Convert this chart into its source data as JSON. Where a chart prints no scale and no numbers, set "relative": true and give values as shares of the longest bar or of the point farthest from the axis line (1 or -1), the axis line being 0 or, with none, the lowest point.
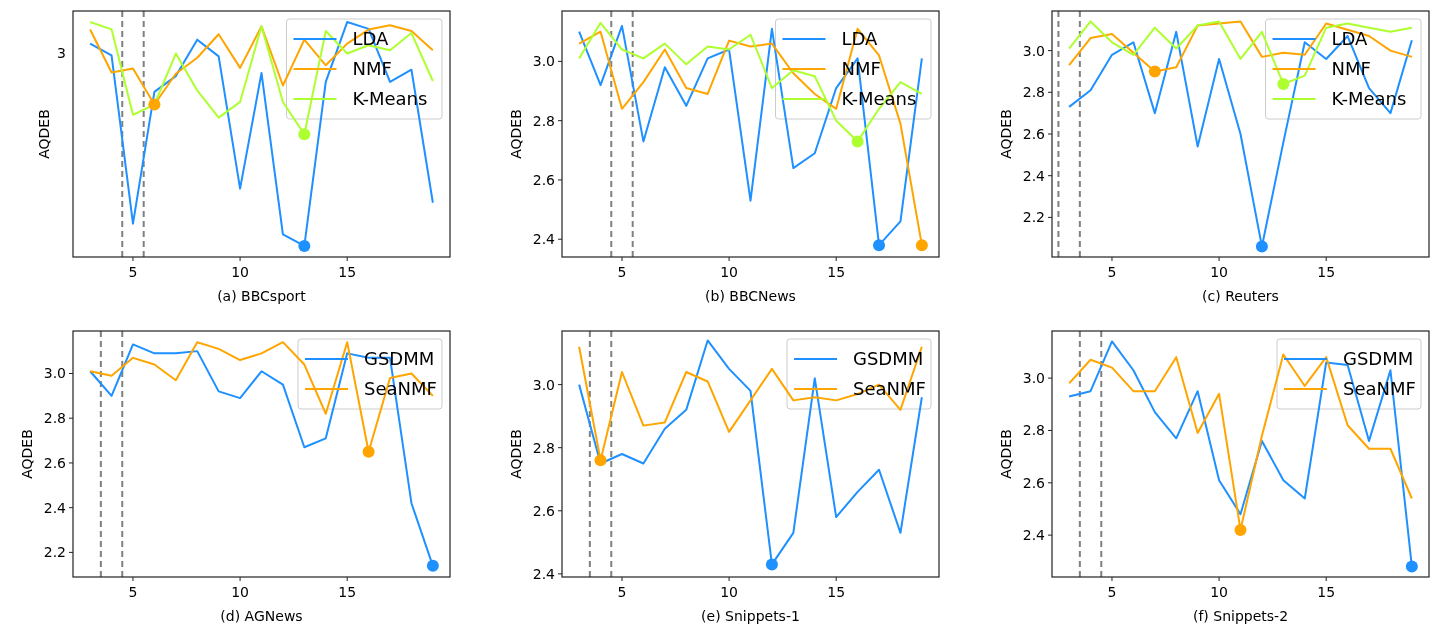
{
  "chart_data": [
    {
      "type": "line",
      "xlabel": "(a) BBCsport",
      "ylabel": "AQDEB",
      "relative": true,
      "annotations": [
        "3"
      ],
      "xlim": [
        2.2,
        19.8
      ],
      "xticks": [
        5,
        10,
        15
      ],
      "legend": "top right",
      "x": [
        3,
        4,
        5,
        6,
        7,
        8,
        9,
        10,
        11,
        12,
        13,
        14,
        15,
        16,
        17,
        18,
        19
      ],
      "ref_lines": [
        {
          "axis": "x",
          "value": 4.5,
          "color": "#808080",
          "line_style": "dashed"
        },
        {
          "axis": "x",
          "value": 5.5,
          "color": "#808080",
          "line_style": "dashed"
        }
      ],
      "series": [
        {
          "name": "LDA",
          "color": "#1e90ff",
          "values": [
            0.908,
            0.858,
            0.142,
            0.703,
            0.77,
            0.925,
            0.854,
            0.291,
            0.783,
            0.096,
            0.047,
            0.745,
            1,
            0.971,
            0.745,
            0.797,
            0.231
          ]
        },
        {
          "name": "NMF",
          "color": "#ffa500",
          "values": [
            0.968,
            0.785,
            0.802,
            0.649,
            0.78,
            0.848,
            0.948,
            0.805,
            0.982,
            0.73,
            0.925,
            0.816,
            0.908,
            0.968,
            0.986,
            0.962,
            0.88
          ]
        },
        {
          "name": "K-Means",
          "color": "#adff2f",
          "values": [
            1,
            0.969,
            0.605,
            0.649,
            0.866,
            0.709,
            0.593,
            0.66,
            0.982,
            0.66,
            0.522,
            0.962,
            0.866,
            0.901,
            0.88,
            0.953,
            0.749
          ]
        },
        {
          "type": "scatter",
          "marker": "circle",
          "color": "#1e90ff",
          "x": [
            13
          ],
          "values": [
            0.047
          ]
        },
        {
          "type": "scatter",
          "marker": "circle",
          "color": "#ffa500",
          "x": [
            6
          ],
          "values": [
            0.649
          ]
        },
        {
          "type": "scatter",
          "marker": "circle",
          "color": "#adff2f",
          "x": [
            13
          ],
          "values": [
            0.522
          ]
        }
      ]
    },
    {
      "type": "line",
      "xlabel": "(b) BBCNews",
      "ylabel": "AQDEB",
      "ylim": [
        2.34,
        3.17
      ],
      "yticks": [
        {
          "value": 2.4,
          "label": "2.4"
        },
        {
          "value": 2.6,
          "label": "2.6"
        },
        {
          "value": 2.8,
          "label": "2.8"
        },
        {
          "value": 3,
          "label": "3.0"
        }
      ],
      "xlim": [
        2.2,
        19.8
      ],
      "xticks": [
        5,
        10,
        15
      ],
      "legend": "top right",
      "x": [
        3,
        4,
        5,
        6,
        7,
        8,
        9,
        10,
        11,
        12,
        13,
        14,
        15,
        16,
        17,
        18,
        19
      ],
      "ref_lines": [
        {
          "axis": "x",
          "value": 4.5,
          "color": "#808080",
          "line_style": "dashed"
        },
        {
          "axis": "x",
          "value": 5.5,
          "color": "#808080",
          "line_style": "dashed"
        }
      ],
      "series": [
        {
          "name": "LDA",
          "color": "#1e90ff",
          "values": [
            3.1,
            2.92,
            3.12,
            2.73,
            2.98,
            2.85,
            3.01,
            3.04,
            2.53,
            3.11,
            2.64,
            2.69,
            2.91,
            3.01,
            2.38,
            2.46,
            3.01
          ]
        },
        {
          "name": "NMF",
          "color": "#ffa500",
          "values": [
            3.06,
            3.1,
            2.84,
            2.93,
            3.04,
            2.91,
            2.89,
            3.07,
            3.05,
            3.06,
            2.96,
            2.89,
            2.84,
            3.11,
            3.02,
            2.79,
            2.38
          ]
        },
        {
          "name": "K-Means",
          "color": "#adff2f",
          "values": [
            3.01,
            3.13,
            3.04,
            3.01,
            3.06,
            2.99,
            3.05,
            3.04,
            3.09,
            2.91,
            2.97,
            2.95,
            2.8,
            2.73,
            2.84,
            2.93,
            2.89
          ]
        },
        {
          "type": "scatter",
          "marker": "circle",
          "color": "#1e90ff",
          "x": [
            17
          ],
          "values": [
            2.38
          ]
        },
        {
          "type": "scatter",
          "marker": "circle",
          "color": "#ffa500",
          "x": [
            19
          ],
          "values": [
            2.38
          ]
        },
        {
          "type": "scatter",
          "marker": "circle",
          "color": "#adff2f",
          "x": [
            16
          ],
          "values": [
            2.73
          ]
        }
      ]
    },
    {
      "type": "line",
      "xlabel": "(c) Reuters",
      "ylabel": "AQDEB",
      "ylim": [
        2.01,
        3.19
      ],
      "yticks": [
        {
          "value": 2.2,
          "label": "2.2"
        },
        {
          "value": 2.4,
          "label": "2.4"
        },
        {
          "value": 2.6,
          "label": "2.6"
        },
        {
          "value": 2.8,
          "label": "2.8"
        },
        {
          "value": 3,
          "label": "3.0"
        }
      ],
      "xlim": [
        2.2,
        19.8
      ],
      "xticks": [
        5,
        10,
        15
      ],
      "legend": "top right",
      "x": [
        3,
        4,
        5,
        6,
        7,
        8,
        9,
        10,
        11,
        12,
        13,
        14,
        15,
        16,
        17,
        18,
        19
      ],
      "ref_lines": [
        {
          "axis": "x",
          "value": 2.5,
          "color": "#808080",
          "line_style": "dashed"
        },
        {
          "axis": "x",
          "value": 3.5,
          "color": "#808080",
          "line_style": "dashed"
        }
      ],
      "series": [
        {
          "name": "LDA",
          "color": "#1e90ff",
          "values": [
            2.73,
            2.81,
            2.98,
            3.04,
            2.7,
            3.09,
            2.54,
            2.96,
            2.6,
            2.06,
            2.56,
            3.04,
            2.96,
            3.07,
            2.82,
            2.7,
            3.05
          ]
        },
        {
          "name": "NMF",
          "color": "#ffa500",
          "values": [
            2.93,
            3.06,
            3.08,
            2.99,
            2.9,
            2.92,
            3.12,
            3.13,
            3.14,
            2.97,
            2.99,
            2.98,
            3.13,
            3.1,
            3.07,
            3.0,
            2.97
          ]
        },
        {
          "name": "K-Means",
          "color": "#adff2f",
          "values": [
            3.01,
            3.14,
            3.04,
            2.98,
            3.11,
            3.01,
            3.12,
            3.14,
            2.96,
            3.09,
            2.84,
            2.88,
            3.11,
            3.13,
            3.11,
            3.09,
            3.11
          ]
        },
        {
          "type": "scatter",
          "marker": "circle",
          "color": "#1e90ff",
          "x": [
            12
          ],
          "values": [
            2.06
          ]
        },
        {
          "type": "scatter",
          "marker": "circle",
          "color": "#ffa500",
          "x": [
            7
          ],
          "values": [
            2.9
          ]
        },
        {
          "type": "scatter",
          "marker": "circle",
          "color": "#adff2f",
          "x": [
            13
          ],
          "values": [
            2.84
          ]
        }
      ]
    },
    {
      "type": "line",
      "xlabel": "(d) AGNews",
      "ylabel": "AQDEB",
      "ylim": [
        2.09,
        3.19
      ],
      "yticks": [
        {
          "value": 2.2,
          "label": "2.2"
        },
        {
          "value": 2.4,
          "label": "2.4"
        },
        {
          "value": 2.6,
          "label": "2.6"
        },
        {
          "value": 2.8,
          "label": "2.8"
        },
        {
          "value": 3,
          "label": "3.0"
        }
      ],
      "xlim": [
        2.2,
        19.8
      ],
      "xticks": [
        5,
        10,
        15
      ],
      "legend": "top right",
      "x": [
        3,
        4,
        5,
        6,
        7,
        8,
        9,
        10,
        11,
        12,
        13,
        14,
        15,
        16,
        17,
        18,
        19
      ],
      "ref_lines": [
        {
          "axis": "x",
          "value": 3.5,
          "color": "#808080",
          "line_style": "dashed"
        },
        {
          "axis": "x",
          "value": 4.5,
          "color": "#808080",
          "line_style": "dashed"
        }
      ],
      "series": [
        {
          "name": "GSDMM",
          "color": "#1e90ff",
          "values": [
            3.01,
            2.9,
            3.13,
            3.09,
            3.09,
            3.1,
            2.92,
            2.89,
            3.01,
            2.95,
            2.67,
            2.71,
            3.09,
            3.07,
            3.07,
            2.42,
            2.14
          ]
        },
        {
          "name": "SeaNMF",
          "color": "#ffa500",
          "values": [
            3.01,
            2.99,
            3.07,
            3.04,
            2.97,
            3.14,
            3.11,
            3.06,
            3.09,
            3.14,
            3.04,
            2.82,
            3.14,
            2.65,
            2.98,
            3.0,
            2.9
          ]
        },
        {
          "type": "scatter",
          "marker": "circle",
          "color": "#1e90ff",
          "x": [
            19
          ],
          "values": [
            2.14
          ]
        },
        {
          "type": "scatter",
          "marker": "circle",
          "color": "#ffa500",
          "x": [
            16
          ],
          "values": [
            2.65
          ]
        }
      ]
    },
    {
      "type": "line",
      "xlabel": "(e) Snippets-1",
      "ylabel": "AQDEB",
      "ylim": [
        2.39,
        3.17
      ],
      "yticks": [
        {
          "value": 2.4,
          "label": "2.4"
        },
        {
          "value": 2.6,
          "label": "2.6"
        },
        {
          "value": 2.8,
          "label": "2.8"
        },
        {
          "value": 3,
          "label": "3.0"
        }
      ],
      "xlim": [
        2.2,
        19.8
      ],
      "xticks": [
        5,
        10,
        15
      ],
      "legend": "top right",
      "x": [
        3,
        4,
        5,
        6,
        7,
        8,
        9,
        10,
        11,
        12,
        13,
        14,
        15,
        16,
        17,
        18,
        19
      ],
      "ref_lines": [
        {
          "axis": "x",
          "value": 3.5,
          "color": "#808080",
          "line_style": "dashed"
        },
        {
          "axis": "x",
          "value": 4.5,
          "color": "#808080",
          "line_style": "dashed"
        }
      ],
      "series": [
        {
          "name": "GSDMM",
          "color": "#1e90ff",
          "values": [
            3.0,
            2.75,
            2.78,
            2.75,
            2.86,
            2.92,
            3.14,
            3.05,
            2.98,
            2.43,
            2.53,
            3.02,
            2.58,
            2.66,
            2.73,
            2.53,
            2.96
          ]
        },
        {
          "name": "SeaNMF",
          "color": "#ffa500",
          "values": [
            3.12,
            2.76,
            3.04,
            2.87,
            2.88,
            3.04,
            3.01,
            2.85,
            2.95,
            3.05,
            2.95,
            2.96,
            2.95,
            2.97,
            3.0,
            2.92,
            3.12
          ]
        },
        {
          "type": "scatter",
          "marker": "circle",
          "color": "#1e90ff",
          "x": [
            12
          ],
          "values": [
            2.43
          ]
        },
        {
          "type": "scatter",
          "marker": "circle",
          "color": "#ffa500",
          "x": [
            4
          ],
          "values": [
            2.76
          ]
        }
      ]
    },
    {
      "type": "line",
      "xlabel": "(f) Snippets-2",
      "ylabel": "AQDEB",
      "ylim": [
        2.24,
        3.18
      ],
      "yticks": [
        {
          "value": 2.4,
          "label": "2.4"
        },
        {
          "value": 2.6,
          "label": "2.6"
        },
        {
          "value": 2.8,
          "label": "2.8"
        },
        {
          "value": 3,
          "label": "3.0"
        }
      ],
      "xlim": [
        2.2,
        19.8
      ],
      "xticks": [
        5,
        10,
        15
      ],
      "legend": "top right",
      "x": [
        3,
        4,
        5,
        6,
        7,
        8,
        9,
        10,
        11,
        12,
        13,
        14,
        15,
        16,
        17,
        18,
        19
      ],
      "ref_lines": [
        {
          "axis": "x",
          "value": 3.5,
          "color": "#808080",
          "line_style": "dashed"
        },
        {
          "axis": "x",
          "value": 4.5,
          "color": "#808080",
          "line_style": "dashed"
        }
      ],
      "series": [
        {
          "name": "GSDMM",
          "color": "#1e90ff",
          "values": [
            2.93,
            2.95,
            3.14,
            3.03,
            2.87,
            2.77,
            2.95,
            2.61,
            2.48,
            2.76,
            2.61,
            2.54,
            3.06,
            3.05,
            2.76,
            3.03,
            2.28
          ]
        },
        {
          "name": "SeaNMF",
          "color": "#ffa500",
          "values": [
            2.98,
            3.07,
            3.04,
            2.95,
            2.95,
            3.08,
            2.79,
            2.94,
            2.42,
            2.78,
            3.09,
            2.97,
            3.08,
            2.82,
            2.73,
            2.73,
            2.54
          ]
        },
        {
          "type": "scatter",
          "marker": "circle",
          "color": "#1e90ff",
          "x": [
            19
          ],
          "values": [
            2.28
          ]
        },
        {
          "type": "scatter",
          "marker": "circle",
          "color": "#ffa500",
          "x": [
            11
          ],
          "values": [
            2.42
          ]
        }
      ]
    }
  ]
}
